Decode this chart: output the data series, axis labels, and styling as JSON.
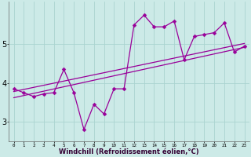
{
  "x_data": [
    0,
    1,
    2,
    3,
    4,
    5,
    6,
    7,
    8,
    9,
    10,
    11,
    12,
    13,
    14,
    15,
    16,
    17,
    18,
    19,
    20,
    21,
    22,
    23
  ],
  "y_data": [
    3.85,
    3.75,
    3.65,
    3.72,
    3.75,
    4.35,
    3.75,
    2.8,
    3.45,
    3.2,
    3.85,
    3.85,
    5.5,
    5.75,
    5.45,
    5.45,
    5.6,
    4.6,
    5.2,
    5.25,
    5.3,
    5.55,
    4.8,
    4.95
  ],
  "line_color": "#990099",
  "marker": "D",
  "marker_size": 2.5,
  "bg_color": "#cceae7",
  "grid_color": "#aad4d0",
  "xlabel": "Windchill (Refroidissement éolien,°C)",
  "xlabel_fontsize": 6,
  "ylabel_ticks": [
    3,
    4,
    5
  ],
  "xlim": [
    -0.5,
    23.5
  ],
  "ylim": [
    2.5,
    6.1
  ],
  "trend_x0": 0,
  "trend_x1": 23,
  "trend_y0": 3.78,
  "trend_y1": 5.02,
  "trend2_y0": 3.62,
  "trend2_y1": 4.92
}
